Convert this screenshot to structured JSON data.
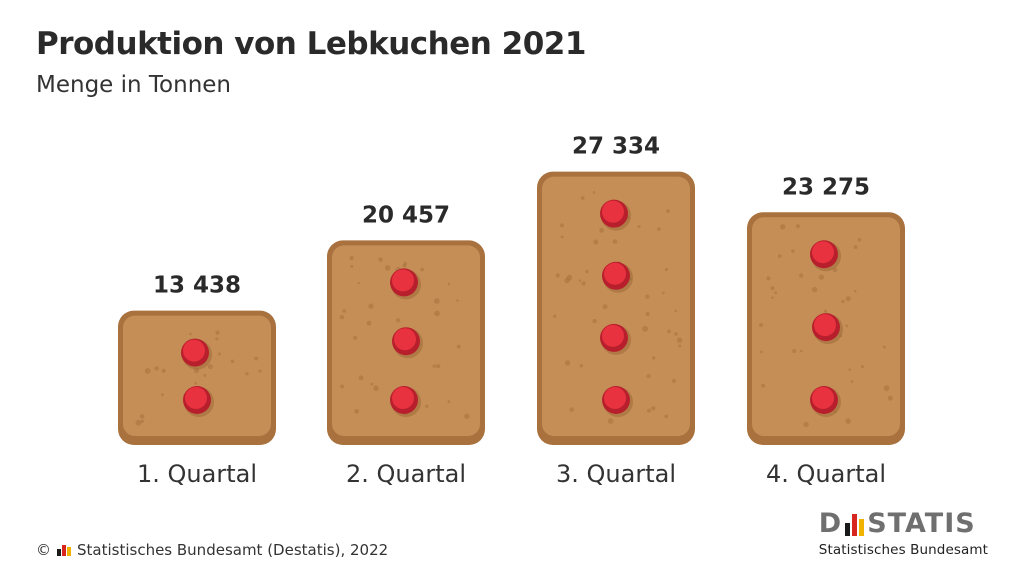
{
  "chart_data": {
    "type": "bar",
    "title": "Produktion von Lebkuchen 2021",
    "subtitle": "Menge in Tonnen",
    "categories": [
      "1. Quartal",
      "2. Quartal",
      "3. Quartal",
      "4. Quartal"
    ],
    "values": [
      13438,
      20457,
      27334,
      23275
    ],
    "value_labels": [
      "13 438",
      "20 457",
      "27 334",
      "23 275"
    ],
    "almonds_per_bar": [
      2,
      3,
      4,
      3
    ],
    "unit": "Tonnen",
    "ylim": [
      0,
      30000
    ],
    "grid": false,
    "legend": "none"
  },
  "colors": {
    "cookie": "#c58e57",
    "cookie_edge": "#a8713d",
    "almond": "#e8323f",
    "almond_edge": "#b81f2c",
    "logo_gray": "#6f6f6f",
    "flag_black": "#1a1a1a",
    "flag_red": "#d6261f",
    "flag_gold": "#f0b300"
  },
  "footer": {
    "copyright": "© ",
    "source": "Statistisches Bundesamt (Destatis), 2022"
  },
  "logo": {
    "word_start": "D",
    "word_end": "STATIS",
    "subtitle": "Statistisches Bundesamt",
    "icon": "destatis-flag-bars-icon"
  }
}
